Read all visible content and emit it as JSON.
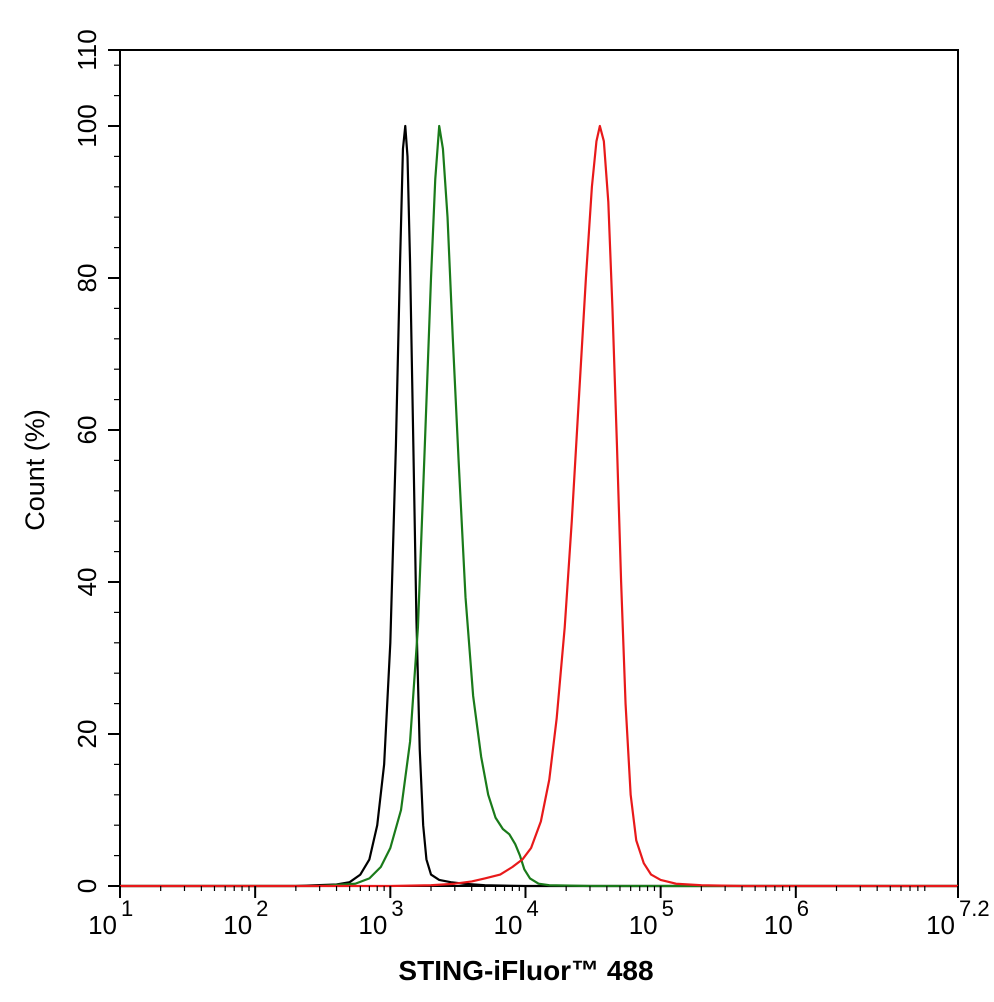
{
  "chart_data": {
    "type": "line",
    "title": "",
    "xlabel": "STING-iFluor™ 488",
    "ylabel": "Count  (%)",
    "x_scale": "log10",
    "xlim": [
      10,
      15848931.92
    ],
    "ylim": [
      0,
      110
    ],
    "x_ticks": [
      {
        "value": 10,
        "base": "10",
        "exp": "1"
      },
      {
        "value": 100,
        "base": "10",
        "exp": "2"
      },
      {
        "value": 1000,
        "base": "10",
        "exp": "3"
      },
      {
        "value": 10000,
        "base": "10",
        "exp": "4"
      },
      {
        "value": 100000,
        "base": "10",
        "exp": "5"
      },
      {
        "value": 1000000,
        "base": "10",
        "exp": "6"
      },
      {
        "value": 15848931.92,
        "base": "10",
        "exp": "7.2"
      }
    ],
    "y_ticks": [
      {
        "value": 0,
        "label": "0"
      },
      {
        "value": 20,
        "label": "20"
      },
      {
        "value": 40,
        "label": "40"
      },
      {
        "value": 60,
        "label": "60"
      },
      {
        "value": 80,
        "label": "80"
      },
      {
        "value": 100,
        "label": "100"
      },
      {
        "value": 110,
        "label": "110"
      }
    ],
    "grid": false,
    "series": [
      {
        "color": "#000000",
        "points": [
          [
            10,
            0
          ],
          [
            200,
            0
          ],
          [
            400,
            0.2
          ],
          [
            500,
            0.5
          ],
          [
            600,
            1.5
          ],
          [
            700,
            3.5
          ],
          [
            800,
            8
          ],
          [
            900,
            16
          ],
          [
            1000,
            32
          ],
          [
            1100,
            58
          ],
          [
            1180,
            82
          ],
          [
            1240,
            97
          ],
          [
            1290,
            100
          ],
          [
            1340,
            96
          ],
          [
            1400,
            82
          ],
          [
            1480,
            58
          ],
          [
            1560,
            35
          ],
          [
            1650,
            18
          ],
          [
            1750,
            8
          ],
          [
            1850,
            3.5
          ],
          [
            2000,
            1.5
          ],
          [
            2300,
            0.8
          ],
          [
            2800,
            0.5
          ],
          [
            3500,
            0.3
          ],
          [
            5000,
            0.1
          ],
          [
            10000,
            0
          ],
          [
            15848931.92,
            0
          ]
        ]
      },
      {
        "color": "#1a7a1a",
        "points": [
          [
            10,
            0
          ],
          [
            300,
            0
          ],
          [
            550,
            0.3
          ],
          [
            700,
            1
          ],
          [
            850,
            2.5
          ],
          [
            1000,
            5
          ],
          [
            1200,
            10
          ],
          [
            1400,
            19
          ],
          [
            1600,
            34
          ],
          [
            1800,
            58
          ],
          [
            2000,
            80
          ],
          [
            2150,
            93
          ],
          [
            2300,
            100
          ],
          [
            2450,
            97
          ],
          [
            2650,
            88
          ],
          [
            2900,
            72
          ],
          [
            3200,
            56
          ],
          [
            3600,
            38
          ],
          [
            4100,
            25
          ],
          [
            4700,
            17
          ],
          [
            5300,
            12
          ],
          [
            6000,
            9
          ],
          [
            6800,
            7.5
          ],
          [
            7600,
            6.8
          ],
          [
            8400,
            5.5
          ],
          [
            9100,
            4
          ],
          [
            9800,
            2.2
          ],
          [
            10800,
            1
          ],
          [
            12500,
            0.3
          ],
          [
            15000,
            0.1
          ],
          [
            30000,
            0
          ],
          [
            15848931.92,
            0
          ]
        ]
      },
      {
        "color": "#e8191a",
        "points": [
          [
            10,
            0
          ],
          [
            1000,
            0
          ],
          [
            2000,
            0.1
          ],
          [
            3000,
            0.3
          ],
          [
            4000,
            0.6
          ],
          [
            5000,
            1
          ],
          [
            6500,
            1.5
          ],
          [
            8000,
            2.5
          ],
          [
            9500,
            3.5
          ],
          [
            11000,
            5
          ],
          [
            13000,
            8.5
          ],
          [
            15000,
            14
          ],
          [
            17000,
            22
          ],
          [
            19500,
            34
          ],
          [
            22000,
            48
          ],
          [
            25000,
            65
          ],
          [
            28000,
            80
          ],
          [
            31000,
            92
          ],
          [
            33500,
            98
          ],
          [
            35500,
            100
          ],
          [
            38000,
            98
          ],
          [
            41000,
            90
          ],
          [
            44000,
            76
          ],
          [
            47500,
            58
          ],
          [
            51000,
            40
          ],
          [
            55000,
            24
          ],
          [
            60000,
            12
          ],
          [
            66000,
            6
          ],
          [
            75000,
            3
          ],
          [
            85000,
            1.5
          ],
          [
            100000,
            0.8
          ],
          [
            130000,
            0.3
          ],
          [
            200000,
            0.1
          ],
          [
            400000,
            0
          ],
          [
            15848931.92,
            0
          ]
        ]
      }
    ]
  }
}
